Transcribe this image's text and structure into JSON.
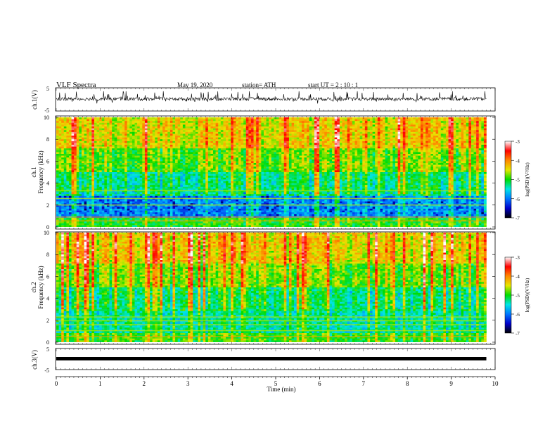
{
  "header": {
    "title": "VLF Spectra",
    "date": "May 19, 2020",
    "station": "station= ATH",
    "start": "start UT =  2 : 10 : 1"
  },
  "xaxis": {
    "label": "Time (min)",
    "ticks": [
      "0",
      "1",
      "2",
      "3",
      "4",
      "5",
      "6",
      "7",
      "8",
      "9",
      "10"
    ]
  },
  "colorbar": {
    "label": "log(PSD)(V²/Hz)",
    "ticks": [
      "-3",
      "-4",
      "-5",
      "-6",
      "-7"
    ],
    "stops": [
      "#000000",
      "#0000cc",
      "#0077ff",
      "#00e6e6",
      "#00dd00",
      "#e6e600",
      "#ff8800",
      "#ff0000",
      "#ffffff"
    ]
  },
  "chart_data": [
    {
      "type": "line",
      "panel": "ch1-waveform",
      "ylabel": "ch.1(V)",
      "yticks": [
        "5",
        "-5"
      ],
      "ylim": [
        -5,
        5
      ],
      "xlim": [
        0,
        10
      ],
      "x_range_min": [
        0,
        9.8
      ],
      "mean_level": 0.2,
      "amplitude_range": [
        -2.5,
        3.5
      ]
    },
    {
      "type": "heatmap",
      "panel": "ch1-spectrogram",
      "ylabel": "ch.1\nFrequency (kHz)",
      "ylabel_lines": [
        "ch.1",
        "Frequency (kHz)"
      ],
      "yticks": [
        "0",
        "2",
        "4",
        "6",
        "8",
        "10"
      ],
      "ylim": [
        0,
        10
      ],
      "xlim": [
        0,
        10
      ],
      "x_range_min": [
        0,
        9.8
      ],
      "z_range": [
        -7,
        -3
      ],
      "z_label": "log(PSD)(V²/Hz)"
    },
    {
      "type": "heatmap",
      "panel": "ch2-spectrogram",
      "ylabel": "ch.2\nFrequency (kHz)",
      "ylabel_lines": [
        "ch.2",
        "Frequency (kHz)"
      ],
      "yticks": [
        "0",
        "2",
        "4",
        "6",
        "8",
        "10"
      ],
      "ylim": [
        0,
        10
      ],
      "xlim": [
        0,
        10
      ],
      "x_range_min": [
        0,
        9.8
      ],
      "z_range": [
        -7,
        -3
      ],
      "z_label": "log(PSD)(V²/Hz)"
    },
    {
      "type": "line",
      "panel": "ch3-waveform",
      "ylabel": "ch.3(V)",
      "yticks": [
        "5",
        "-5"
      ],
      "ylim": [
        -5,
        5
      ],
      "xlim": [
        0,
        10
      ],
      "x_range_min": [
        0,
        9.8
      ],
      "mean_level": 0.0
    }
  ]
}
